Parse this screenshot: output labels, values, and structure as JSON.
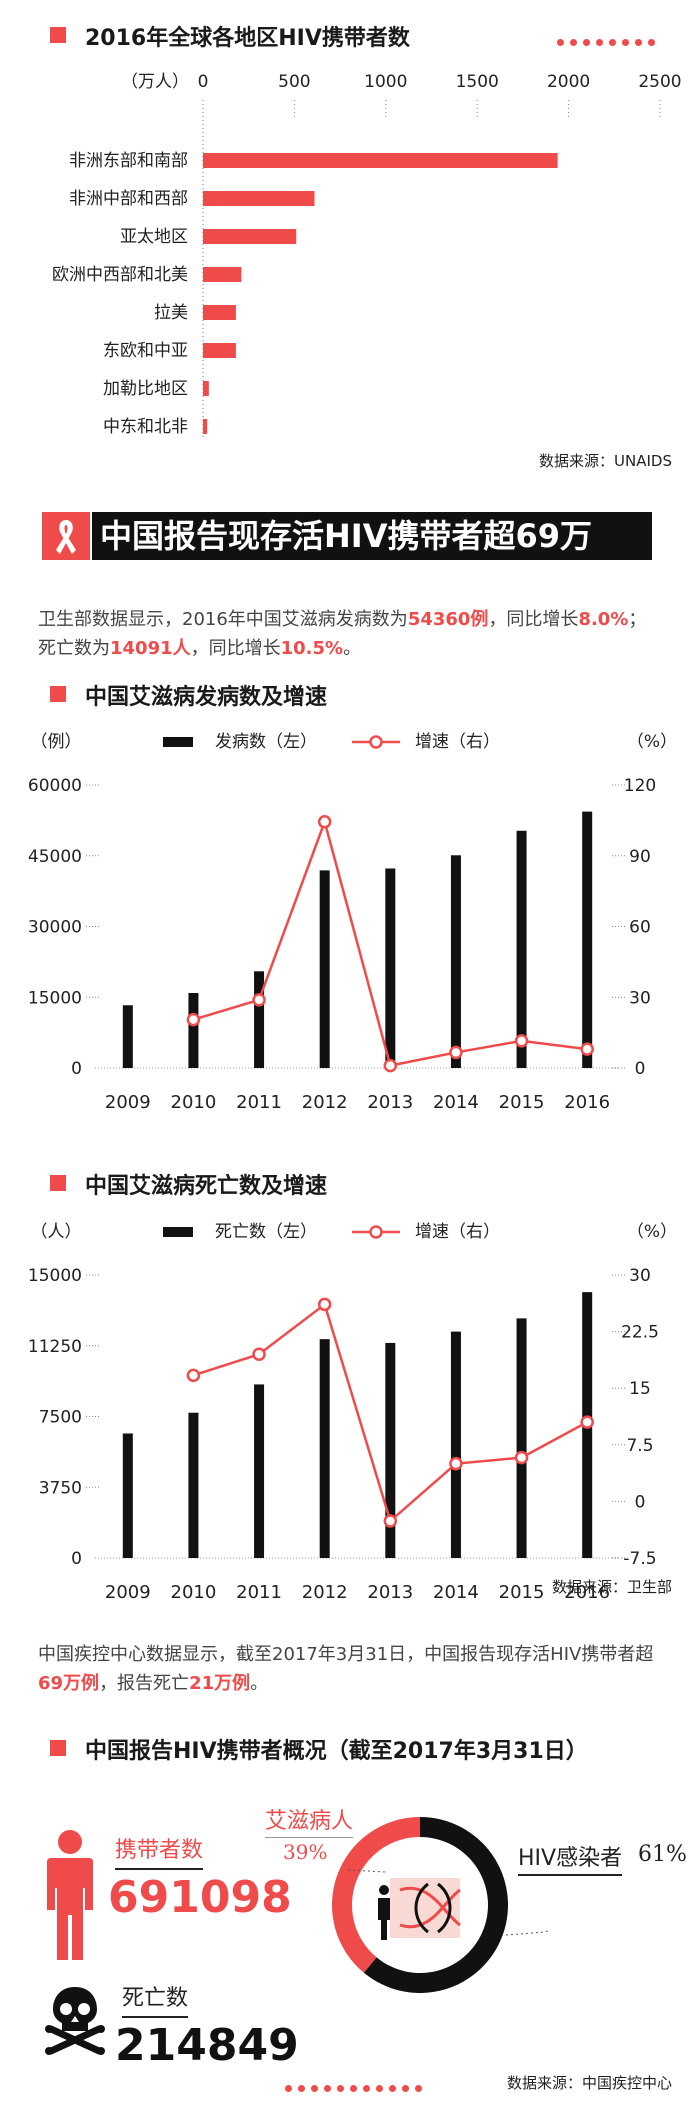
{
  "colors": {
    "accent": "#ef4b4b",
    "dark": "#111111",
    "text": "#222222"
  },
  "sec1": {
    "title": "2016年全球各地区HIV携带者数",
    "unit": "（万人）",
    "source": "数据来源：UNAIDS"
  },
  "banner": {
    "title": "中国报告现存活HIV携带者超69万",
    "icon": "ribbon-icon"
  },
  "intro": {
    "p1": "卫生部数据显示，2016年中国艾滋病发病数为",
    "cases": "54360例",
    "p2": "，同比增长",
    "case_growth": "8.0%",
    "p3": "；死亡数为",
    "deaths": "14091人",
    "p4": "，同比增长",
    "death_growth": "10.5%",
    "p5": "。"
  },
  "chart2_title": "中国艾滋病发病数及增速",
  "chart3_title": "中国艾滋病死亡数及增速",
  "chart3_source": "数据来源：卫生部",
  "para2": {
    "p1": "中国疾控中心数据显示，截至2017年3月31日，中国报告现存活HIV携带者超",
    "carriers": "69万例",
    "p2": "，报告死亡",
    "dead": "21万例",
    "p3": "。"
  },
  "sec4": {
    "title": "中国报告HIV携带者概况（截至2017年3月31日）",
    "carrier_label": "携带者数",
    "carrier_value": "691098",
    "aids_label": "艾滋病人",
    "aids_pct": "39%",
    "hiv_label": "HIV感染者",
    "hiv_pct": "61%",
    "death_label": "死亡数",
    "death_value": "214849",
    "source": "数据来源：中国疾控中心"
  },
  "chart_data": [
    {
      "type": "bar",
      "orientation": "horizontal",
      "title": "2016年全球各地区HIV携带者数",
      "unit_label": "（万人）",
      "categories": [
        "非洲东部和南部",
        "非洲中部和西部",
        "亚太地区",
        "欧洲中西部和北美",
        "拉美",
        "东欧和中亚",
        "加勒比地区",
        "中东和北非"
      ],
      "values": [
        1940,
        610,
        510,
        210,
        180,
        180,
        32,
        23
      ],
      "xlim": [
        0,
        2500
      ],
      "xticks": [
        0,
        500,
        1000,
        1500,
        2000,
        2500
      ],
      "grid": "dotted"
    },
    {
      "type": "bar+line",
      "title": "中国艾滋病发病数及增速",
      "categories": [
        "2009",
        "2010",
        "2011",
        "2012",
        "2013",
        "2014",
        "2015",
        "2016"
      ],
      "bar": {
        "name": "发病数（左）",
        "values": [
          13300,
          15900,
          20500,
          41900,
          42300,
          45100,
          50300,
          54360
        ]
      },
      "line": {
        "name": "增速（右）",
        "values": [
          null,
          20.5,
          28.9,
          104.4,
          1.0,
          6.6,
          11.5,
          8.0
        ]
      },
      "y_left": {
        "label": "（例）",
        "lim": [
          0,
          60000
        ],
        "ticks": [
          "60000",
          "45000",
          "30000",
          "15000",
          "0"
        ]
      },
      "y_right": {
        "label": "（%）",
        "lim": [
          0,
          120
        ],
        "ticks": [
          "120",
          "90",
          "60",
          "30",
          "0"
        ]
      }
    },
    {
      "type": "bar+line",
      "title": "中国艾滋病死亡数及增速",
      "categories": [
        "2009",
        "2010",
        "2011",
        "2012",
        "2013",
        "2014",
        "2015",
        "2016"
      ],
      "bar": {
        "name": "死亡数（左）",
        "values": [
          6600,
          7700,
          9200,
          11600,
          11400,
          12000,
          12700,
          14091
        ]
      },
      "line": {
        "name": "增速（右）",
        "values": [
          null,
          16.7,
          19.5,
          26.1,
          -2.6,
          5.0,
          5.8,
          10.5
        ]
      },
      "y_left": {
        "label": "（人）",
        "lim": [
          0,
          15000
        ],
        "ticks": [
          "15000",
          "11250",
          "7500",
          "3750",
          "0"
        ]
      },
      "y_right": {
        "label": "（%）",
        "lim": [
          -7.5,
          30
        ],
        "ticks": [
          "30",
          "22.5",
          "15",
          "7.5",
          "0",
          "-7.5"
        ]
      }
    },
    {
      "type": "pie",
      "title": "中国报告HIV携带者概况",
      "categories": [
        "艾滋病人",
        "HIV感染者"
      ],
      "values": [
        39,
        61
      ]
    }
  ]
}
